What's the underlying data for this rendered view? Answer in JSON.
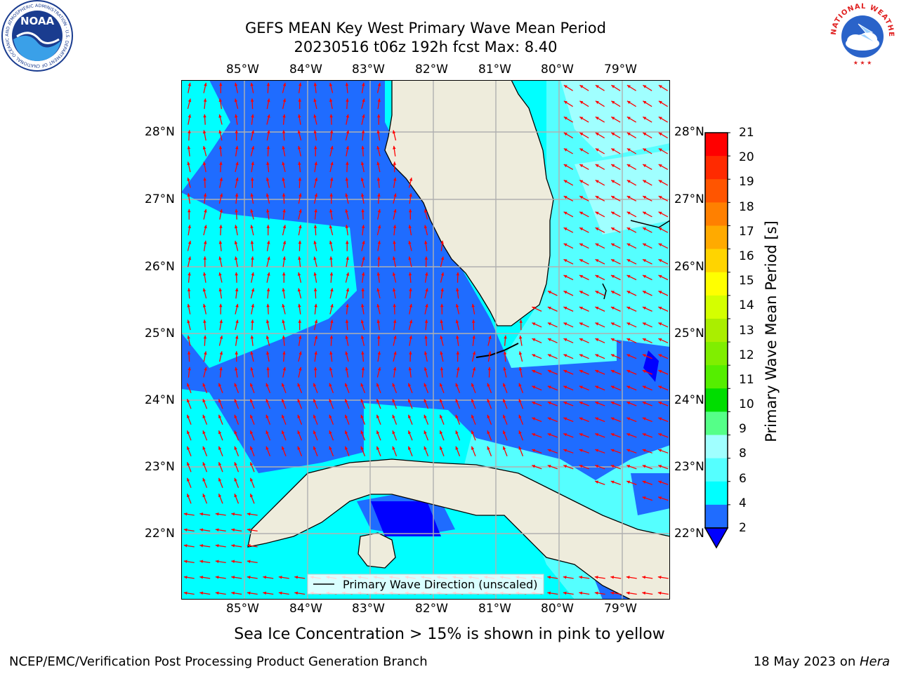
{
  "header": {
    "title_line1": "GEFS MEAN Key West Primary Wave Mean Period",
    "title_line2": "20230516 t06z 192h fcst   Max: 8.40"
  },
  "logos": {
    "noaa_label": "NOAA",
    "noaa_ring_text": "NATIONAL OCEANIC AND ATMOSPHERIC ADMINISTRATION · U.S. DEPARTMENT OF COMMERCE",
    "nws_ring_text": "NATIONAL WEATHER SERVICE"
  },
  "map": {
    "lon_labels": [
      "85°W",
      "84°W",
      "83°W",
      "82°W",
      "81°W",
      "80°W",
      "79°W"
    ],
    "lat_labels": [
      "28°N",
      "27°N",
      "26°N",
      "25°N",
      "24°N",
      "23°N",
      "22°N"
    ],
    "legend_label": "Primary Wave Direction (unscaled)",
    "colors": {
      "land": "#eeecdc",
      "band_2_4": "#1f6cff",
      "band_4_6": "#00ffff",
      "band_6_8": "#55ffff",
      "band_8_9": "#a0ffff",
      "below_2": "#0000ff",
      "arrow": "#ff0000",
      "grid": "#b0b0b0"
    }
  },
  "colorbar": {
    "label": "Primary Wave Mean Period [s]",
    "ticks": [
      "21",
      "20",
      "19",
      "18",
      "17",
      "16",
      "15",
      "14",
      "13",
      "12",
      "11",
      "10",
      "9",
      "8",
      "6",
      "4",
      "2"
    ],
    "colors": [
      "#ff0000",
      "#ff2a00",
      "#ff5500",
      "#ff8000",
      "#ffaa00",
      "#ffd400",
      "#ffff00",
      "#d4ff00",
      "#aaee00",
      "#80ee00",
      "#55ee00",
      "#00dd00",
      "#55ff88",
      "#a0ffff",
      "#55ffff",
      "#00ffff",
      "#1f6cff"
    ],
    "extend_color": "#0000ff"
  },
  "notes": {
    "sea_ice": "Sea Ice Concentration > 15% is shown in pink to yellow"
  },
  "footer": {
    "left": "NCEP/EMC/Verification Post Processing Product Generation Branch",
    "right_date": "18 May 2023 on ",
    "right_machine": "Hera"
  }
}
